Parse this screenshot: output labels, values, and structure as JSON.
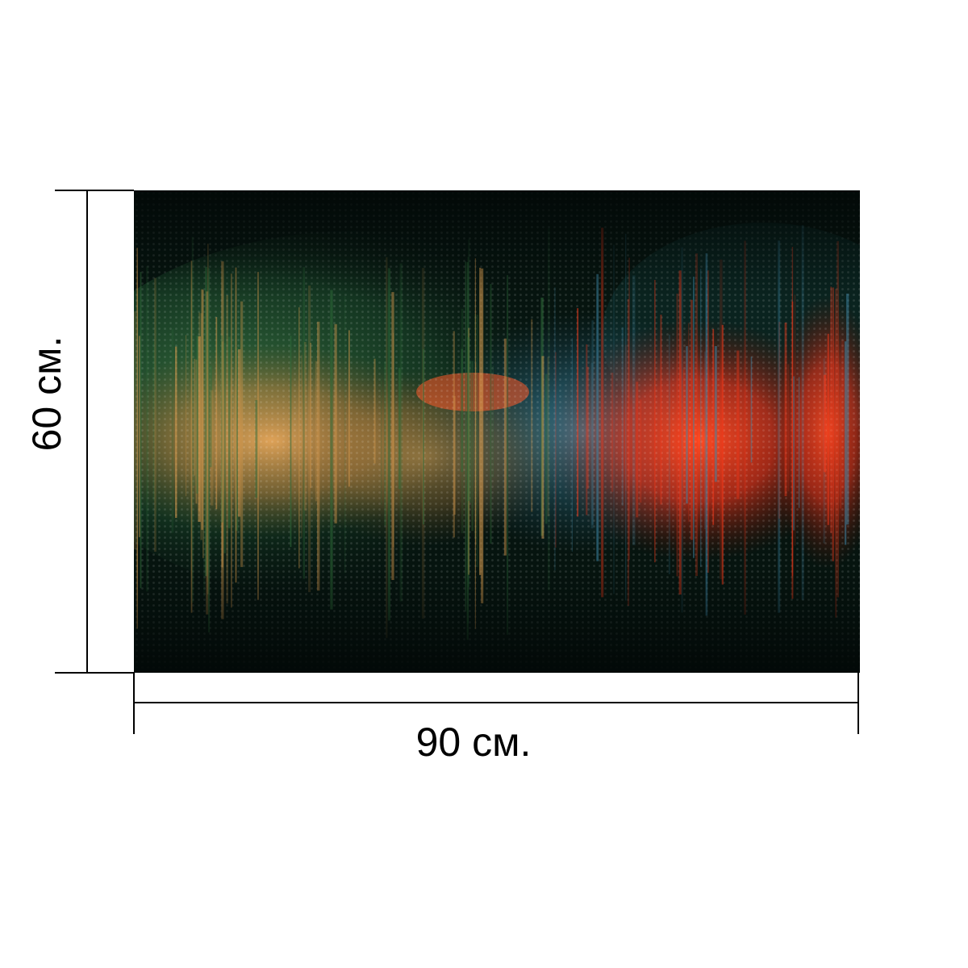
{
  "artwork": {
    "palette": {
      "background": "#06140f",
      "green": "#2f6b3a",
      "orange": "#d89a4e",
      "red": "#f0381a",
      "blue": "#3f87a6"
    }
  },
  "dimensions": {
    "width_label": "90 см.",
    "height_label": "60 см."
  }
}
